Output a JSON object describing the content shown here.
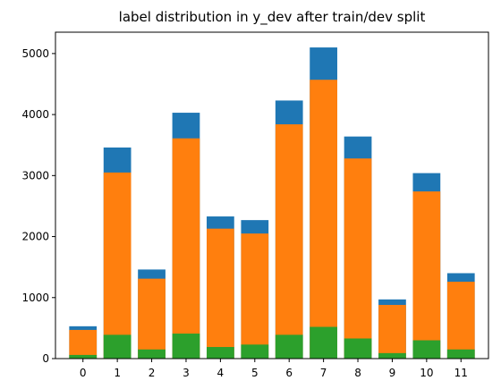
{
  "chart_data": {
    "type": "bar",
    "title": "label distribution in y_dev after train/dev split",
    "xlabel": "",
    "ylabel": "",
    "categories": [
      "0",
      "1",
      "2",
      "3",
      "4",
      "5",
      "6",
      "7",
      "8",
      "9",
      "10",
      "11"
    ],
    "ylim": [
      0,
      5350
    ],
    "yticks": [
      0,
      1000,
      2000,
      3000,
      4000,
      5000
    ],
    "grid": false,
    "legend": "none",
    "series": [
      {
        "color": "#1f77b4",
        "values": [
          530,
          3460,
          1460,
          4030,
          2330,
          2270,
          4230,
          5100,
          3640,
          970,
          3040,
          1400
        ]
      },
      {
        "color": "#ff7f0e",
        "values": [
          470,
          3050,
          1310,
          3610,
          2130,
          2050,
          3840,
          4570,
          3280,
          880,
          2740,
          1260
        ]
      },
      {
        "color": "#2ca02c",
        "values": [
          60,
          390,
          150,
          410,
          190,
          230,
          390,
          520,
          330,
          90,
          300,
          150
        ]
      }
    ]
  }
}
